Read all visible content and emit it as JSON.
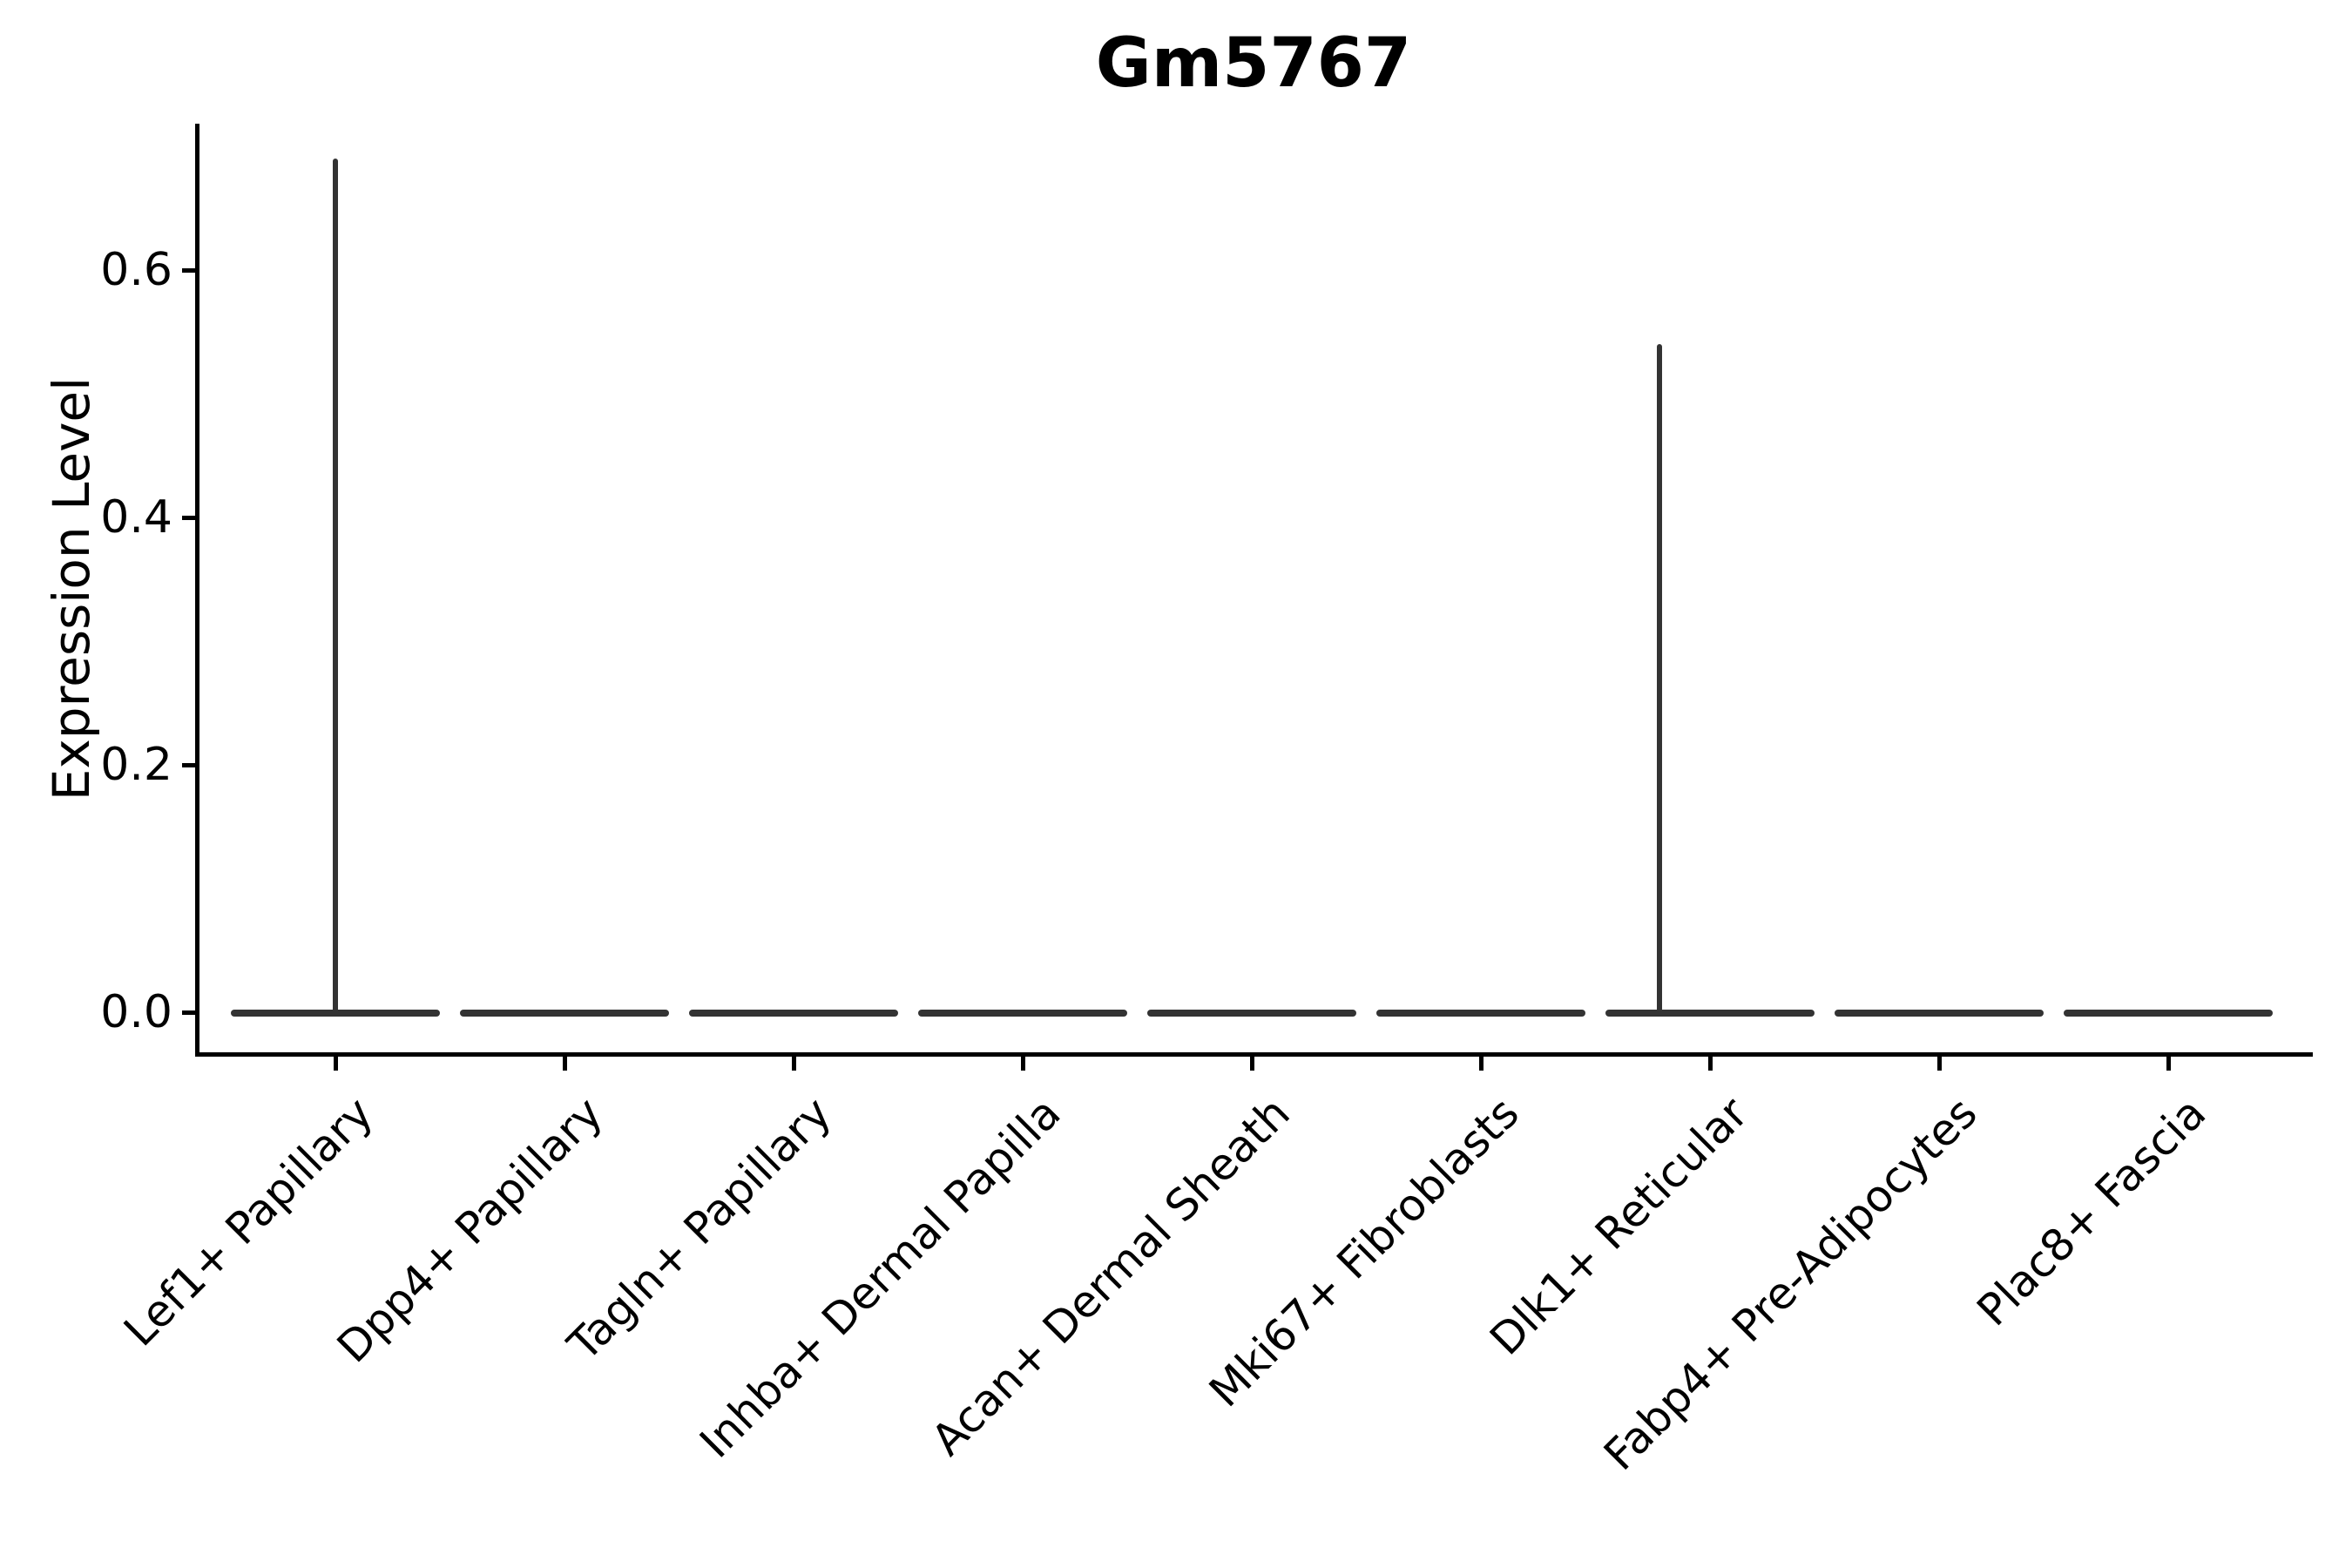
{
  "chart_data": {
    "type": "violin",
    "title": "Gm5767",
    "ylabel": "Expression Level",
    "xlabel": "",
    "categories": [
      "Lef1+ Papillary",
      "Dpp4+ Papillary",
      "Tagln+ Papillary",
      "Inhba+ Dermal Papilla",
      "Acan+ Dermal Sheath",
      "Mki67+ Fibroblasts",
      "Dlk1+ Reticular",
      "Fabp4+ Pre-Adipocytes",
      "Plac8+ Fascia"
    ],
    "yticks": [
      0.0,
      0.2,
      0.4,
      0.6
    ],
    "ytick_labels": [
      "0.0",
      "0.2",
      "0.4",
      "0.6"
    ],
    "ylim": [
      -0.03,
      0.72
    ],
    "grid": false,
    "legend": "none",
    "colors": {
      "violin": "#333333",
      "axis": "#000000",
      "text": "#000000",
      "background": "#ffffff"
    },
    "violins": [
      {
        "category": "Lef1+ Papillary",
        "median": 0.0,
        "max": 0.69,
        "spike_offset_frac": 0.0
      },
      {
        "category": "Dpp4+ Papillary",
        "median": 0.0,
        "max": 0.0,
        "spike_offset_frac": 0.0
      },
      {
        "category": "Tagln+ Papillary",
        "median": 0.0,
        "max": 0.0,
        "spike_offset_frac": 0.0
      },
      {
        "category": "Inhba+ Dermal Papilla",
        "median": 0.0,
        "max": 0.0,
        "spike_offset_frac": 0.0
      },
      {
        "category": "Acan+ Dermal Sheath",
        "median": 0.0,
        "max": 0.0,
        "spike_offset_frac": 0.0
      },
      {
        "category": "Mki67+ Fibroblasts",
        "median": 0.0,
        "max": 0.0,
        "spike_offset_frac": 0.0
      },
      {
        "category": "Dlk1+ Reticular",
        "median": 0.0,
        "max": 0.54,
        "spike_offset_frac": -0.22
      },
      {
        "category": "Fabp4+ Pre-Adipocytes",
        "median": 0.0,
        "max": 0.0,
        "spike_offset_frac": 0.0
      },
      {
        "category": "Plac8+ Fascia",
        "median": 0.0,
        "max": 0.0,
        "spike_offset_frac": 0.0
      }
    ],
    "series": [
      {
        "name": "max expression",
        "values": [
          0.69,
          0,
          0,
          0,
          0,
          0,
          0.54,
          0,
          0
        ]
      }
    ]
  }
}
